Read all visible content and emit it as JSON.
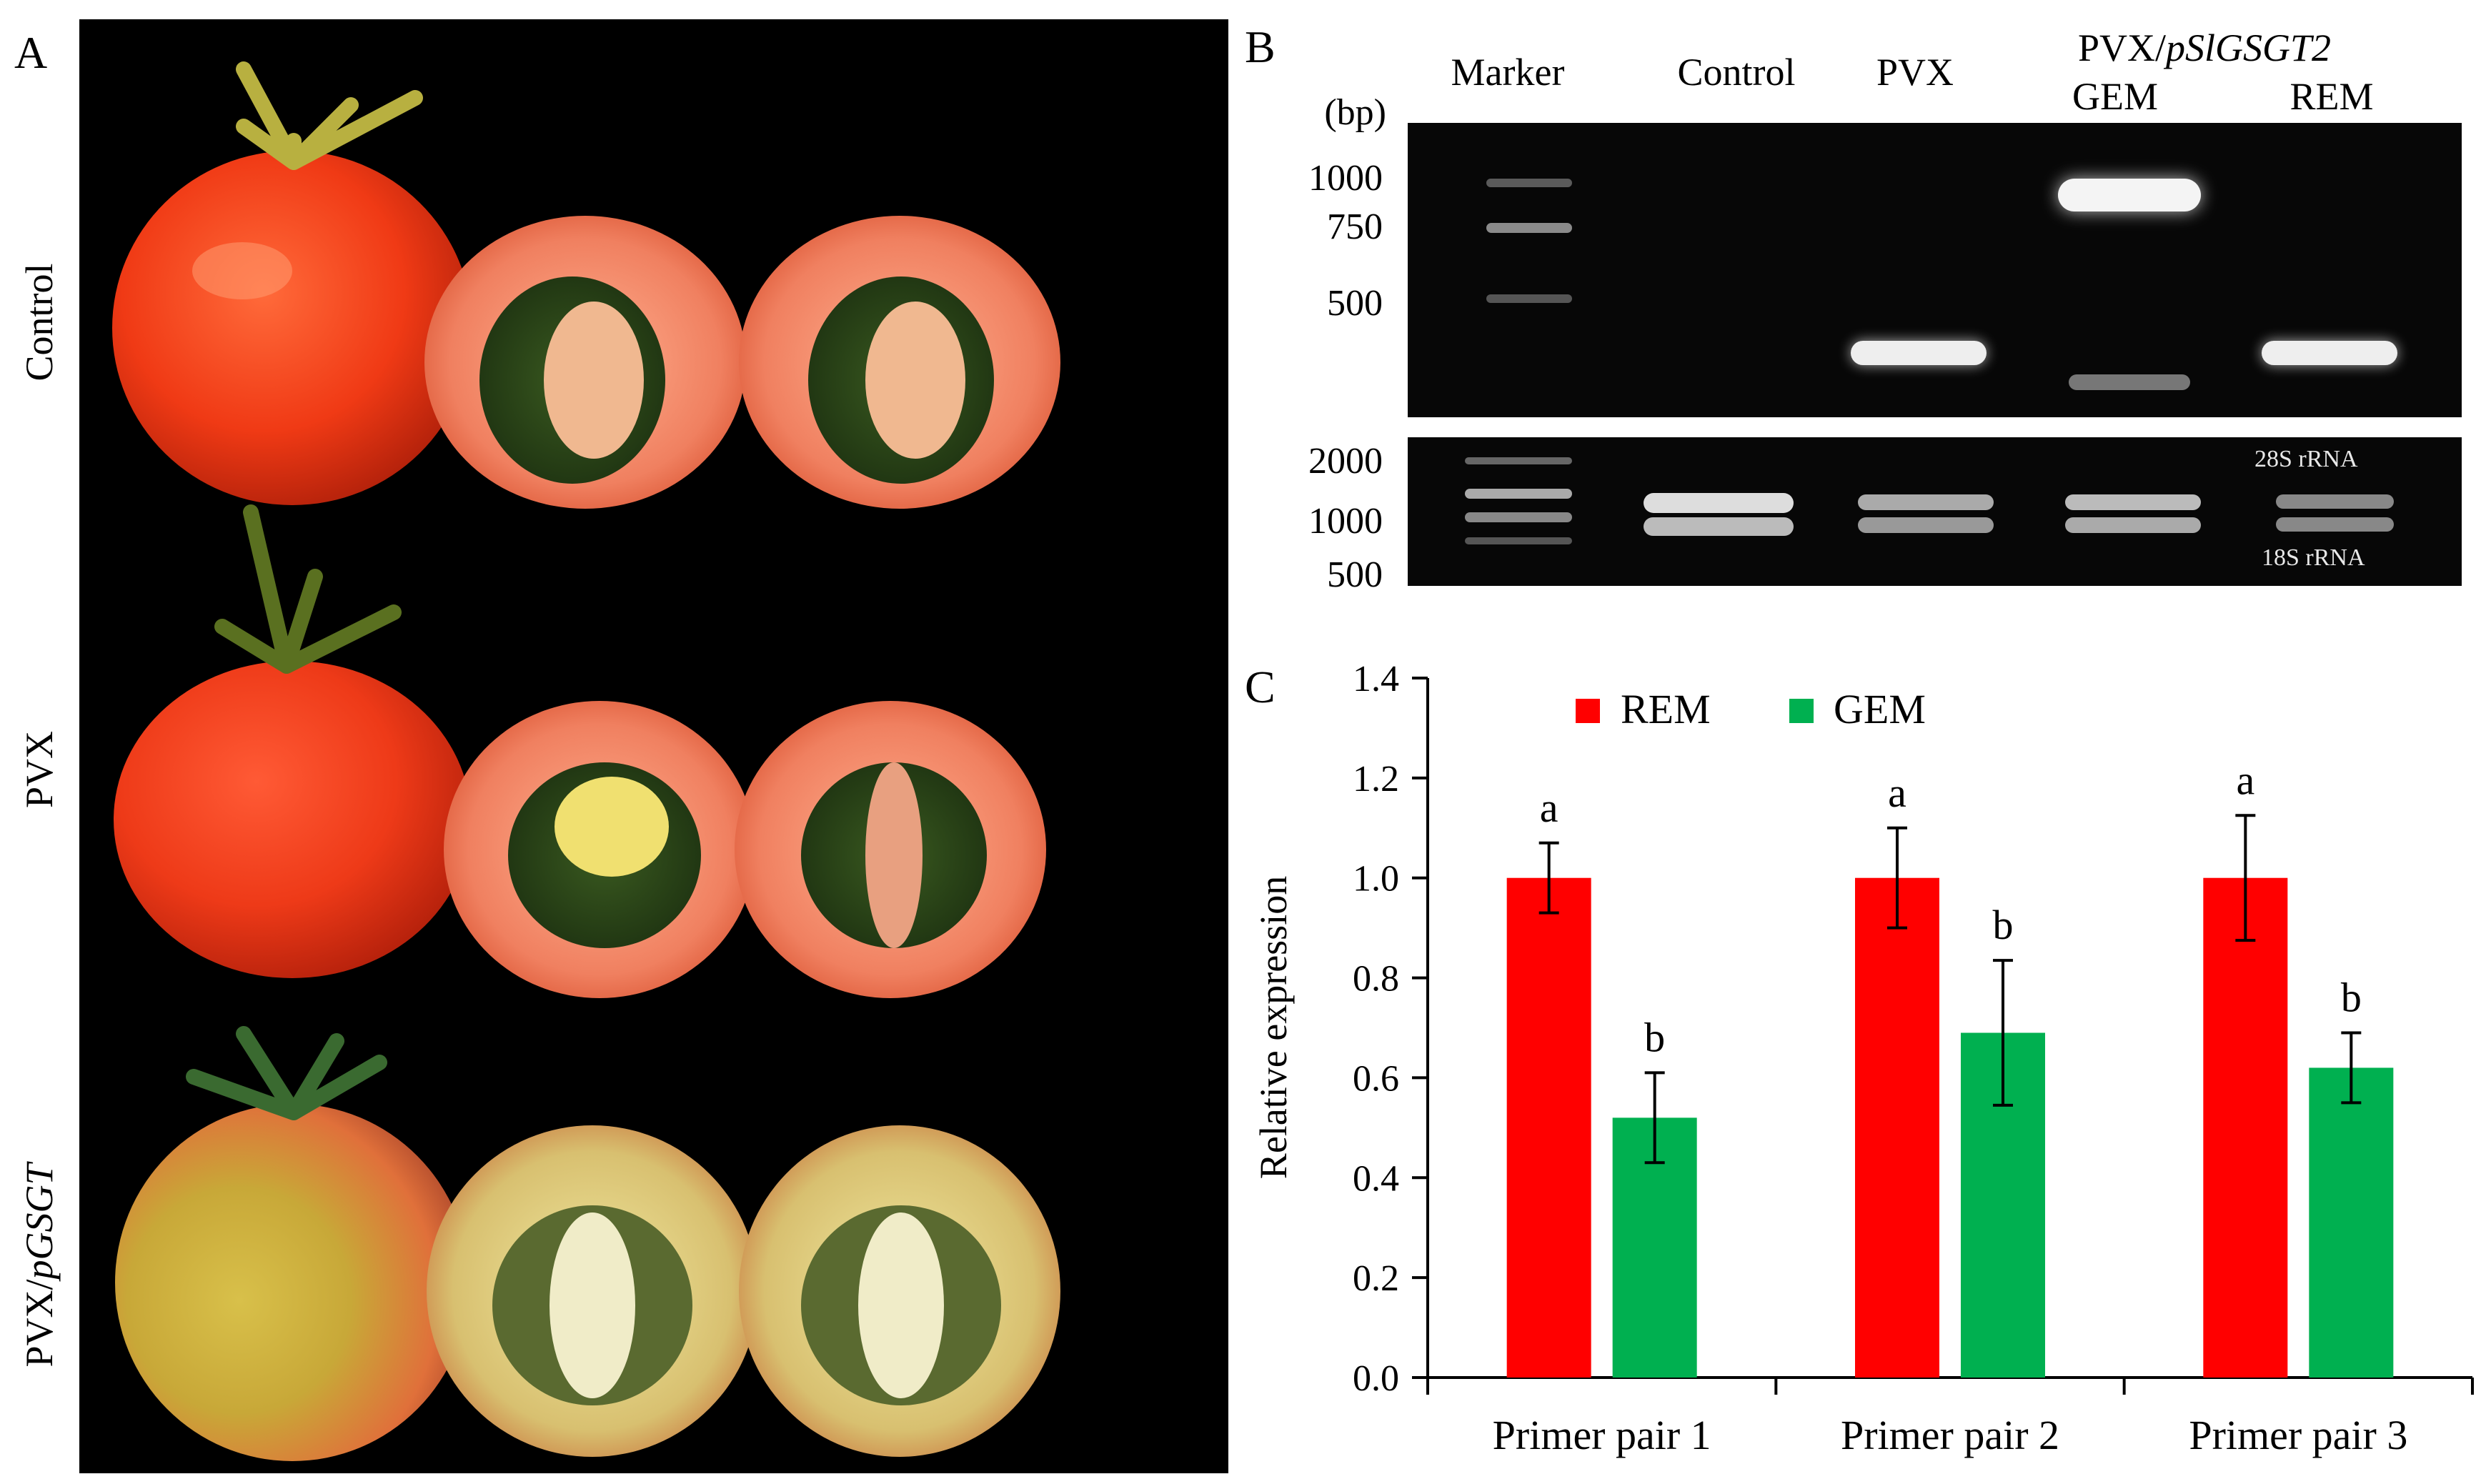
{
  "panels": {
    "a": "A",
    "b": "B",
    "c": "C"
  },
  "photo_rows": [
    {
      "label": "Control"
    },
    {
      "label": "PVX"
    },
    {
      "label": "PVX/",
      "label_italic": "pGSGT"
    }
  ],
  "gel": {
    "lanes": [
      "Marker",
      "Control",
      "PVX"
    ],
    "group_label": "PVX/",
    "group_label_italic": "pSlGSGT2",
    "sub_lanes": [
      "GEM",
      "REM"
    ],
    "unit": "(bp)",
    "top_ladder": [
      "1000",
      "750",
      "500"
    ],
    "bottom_ladder": [
      "2000",
      "1000",
      "500"
    ],
    "rrna_labels": [
      "28S rRNA",
      "18S rRNA"
    ]
  },
  "chart_data": {
    "type": "bar",
    "categories": [
      "Primer pair 1",
      "Primer pair 2",
      "Primer pair 3"
    ],
    "series": [
      {
        "name": "REM",
        "color": "#ff0000",
        "values": [
          1.0,
          1.0,
          1.0
        ],
        "errors": [
          0.07,
          0.1,
          0.125
        ],
        "letters": [
          "a",
          "a",
          "a"
        ]
      },
      {
        "name": "GEM",
        "color": "#00b050",
        "values": [
          0.52,
          0.69,
          0.62
        ],
        "errors": [
          0.09,
          0.145,
          0.07
        ],
        "letters": [
          "b",
          "b",
          "b"
        ]
      }
    ],
    "ylabel": "Relative expression",
    "ylim": [
      0,
      1.4
    ],
    "yticks": [
      "0.0",
      "0.2",
      "0.4",
      "0.6",
      "0.8",
      "1.0",
      "1.2",
      "1.4"
    ],
    "legend_position": "top-left"
  }
}
